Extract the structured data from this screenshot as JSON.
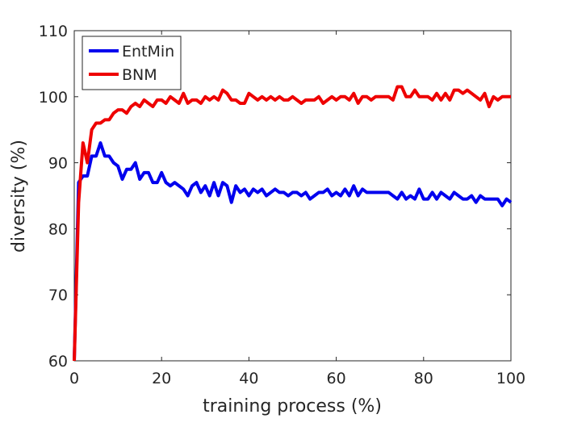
{
  "chart_data": {
    "type": "line",
    "x_label": "training process (%)",
    "y_label": "diversity (%)",
    "x": [
      0,
      1,
      2,
      3,
      4,
      5,
      6,
      7,
      8,
      9,
      10,
      11,
      12,
      13,
      14,
      15,
      16,
      17,
      18,
      19,
      20,
      21,
      22,
      23,
      24,
      25,
      26,
      27,
      28,
      29,
      30,
      31,
      32,
      33,
      34,
      35,
      36,
      37,
      38,
      39,
      40,
      41,
      42,
      43,
      44,
      45,
      46,
      47,
      48,
      49,
      50,
      51,
      52,
      53,
      54,
      55,
      56,
      57,
      58,
      59,
      60,
      61,
      62,
      63,
      64,
      65,
      66,
      67,
      68,
      69,
      70,
      71,
      72,
      73,
      74,
      75,
      76,
      77,
      78,
      79,
      80,
      81,
      82,
      83,
      84,
      85,
      86,
      87,
      88,
      89,
      90,
      91,
      92,
      93,
      94,
      95,
      96,
      97,
      98,
      99,
      100
    ],
    "series": [
      {
        "name": "EntMin",
        "color": "#0000ee",
        "values": [
          60,
          87,
          88,
          88,
          91,
          91,
          93,
          91,
          91,
          90,
          89.5,
          87.5,
          89,
          89,
          90,
          87.5,
          88.5,
          88.5,
          87,
          87,
          88.5,
          87,
          86.5,
          87,
          86.5,
          86,
          85,
          86.5,
          87,
          85.5,
          86.5,
          85,
          87,
          85,
          87,
          86.5,
          84,
          86.5,
          85.5,
          86,
          85,
          86,
          85.5,
          86,
          85,
          85.5,
          86,
          85.5,
          85.5,
          85,
          85.5,
          85.5,
          85,
          85.5,
          84.5,
          85,
          85.5,
          85.5,
          86,
          85,
          85.5,
          85,
          86,
          85,
          86.5,
          85,
          86,
          85.5,
          85.5,
          85.5,
          85.5,
          85.5,
          85.5,
          85,
          84.5,
          85.5,
          84.5,
          85,
          84.5,
          86,
          84.5,
          84.5,
          85.5,
          84.5,
          85.5,
          85,
          84.5,
          85.5,
          85,
          84.5,
          84.5,
          85,
          84,
          85,
          84.5,
          84.5,
          84.5,
          84.5,
          83.5,
          84.5,
          84
        ]
      },
      {
        "name": "BNM",
        "color": "#ee0000",
        "values": [
          60,
          84,
          93,
          90,
          95,
          96,
          96,
          96.5,
          96.5,
          97.5,
          98,
          98,
          97.5,
          98.5,
          99,
          98.5,
          99.5,
          99,
          98.5,
          99.5,
          99.5,
          99,
          100,
          99.5,
          99,
          100.5,
          99,
          99.5,
          99.5,
          99,
          100,
          99.5,
          100,
          99.5,
          101,
          100.5,
          99.5,
          99.5,
          99,
          99,
          100.5,
          100,
          99.5,
          100,
          99.5,
          100,
          99.5,
          100,
          99.5,
          99.5,
          100,
          99.5,
          99,
          99.5,
          99.5,
          99.5,
          100,
          99,
          99.5,
          100,
          99.5,
          100,
          100,
          99.5,
          100.5,
          99,
          100,
          100,
          99.5,
          100,
          100,
          100,
          100,
          99.5,
          101.5,
          101.5,
          100,
          100,
          101,
          100,
          100,
          100,
          99.5,
          100.5,
          99.5,
          100.5,
          99.5,
          101,
          101,
          100.5,
          101,
          100.5,
          100,
          99.5,
          100.5,
          98.5,
          100,
          99.5,
          100,
          100,
          100
        ]
      }
    ],
    "xlim": [
      0,
      100
    ],
    "xticks": [
      0,
      20,
      40,
      60,
      80,
      100
    ],
    "ylim": [
      60,
      110
    ],
    "yticks": [
      60,
      70,
      80,
      90,
      100,
      110
    ],
    "legend": "upper left"
  }
}
